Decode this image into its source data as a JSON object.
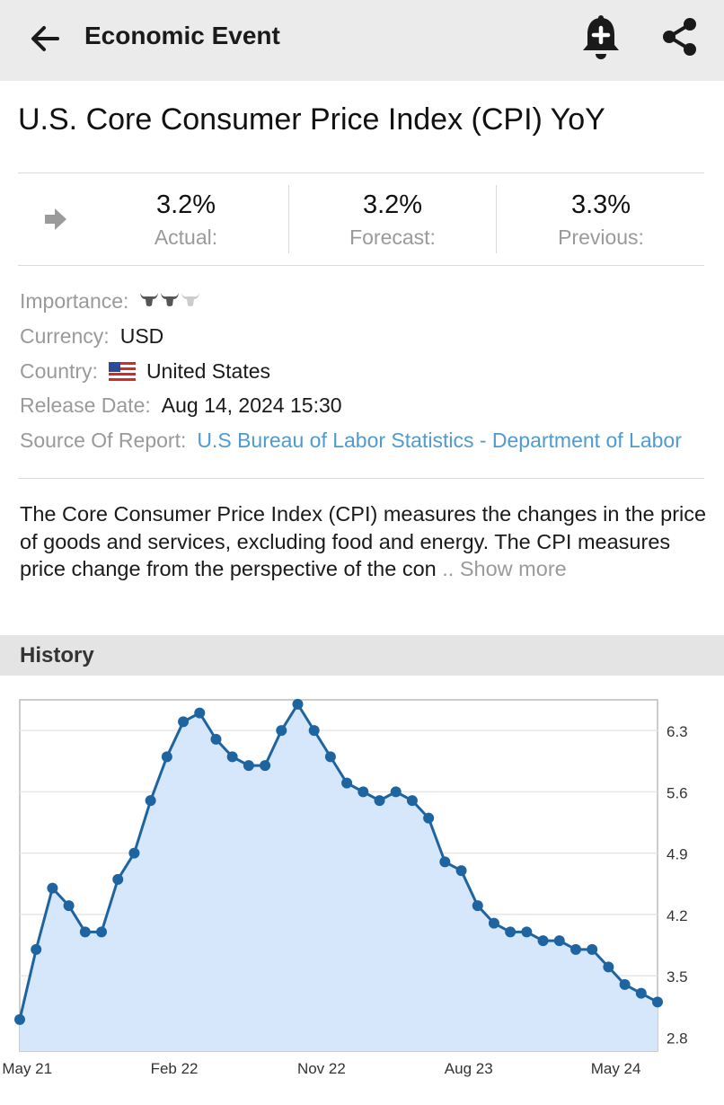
{
  "header": {
    "title": "Economic Event",
    "icons": {
      "back": "arrow-left-icon",
      "alert": "bell-plus-icon",
      "share": "share-icon"
    }
  },
  "event": {
    "title": "U.S. Core Consumer Price Index (CPI) YoY"
  },
  "stats": {
    "trend_icon": "arrow-right-icon",
    "actual": {
      "value": "3.2%",
      "label": "Actual:"
    },
    "forecast": {
      "value": "3.2%",
      "label": "Forecast:"
    },
    "previous": {
      "value": "3.3%",
      "label": "Previous:"
    }
  },
  "details": {
    "importance_label": "Importance:",
    "importance_level": 2,
    "importance_max": 3,
    "currency_label": "Currency:",
    "currency": "USD",
    "country_label": "Country:",
    "country": "United States",
    "release_label": "Release Date:",
    "release": "Aug 14, 2024 15:30",
    "source_label": "Source Of Report:",
    "source": "U.S Bureau of Labor Statistics - Department of Labor"
  },
  "description": {
    "text": "The Core Consumer Price Index (CPI) measures the changes in the price of goods and services, excluding food and energy. The CPI measures price change from the perspective of the con",
    "more": " .. Show more"
  },
  "history": {
    "label": "History"
  },
  "colors": {
    "link": "#4f9bd0",
    "line": "#1e64a0",
    "fill": "#d6e7fb",
    "header_bg": "#ebebeb"
  },
  "chart_data": {
    "type": "area",
    "x_ticks": [
      "May 21",
      "Feb 22",
      "Nov 22",
      "Aug 23",
      "May 24"
    ],
    "x_tick_index": [
      1,
      10,
      19,
      28,
      37
    ],
    "y_ticks": [
      "6.3",
      "5.6",
      "4.9",
      "4.2",
      "3.5",
      "2.8"
    ],
    "ylim": [
      2.8,
      6.3
    ],
    "values": [
      3.0,
      3.8,
      4.5,
      4.3,
      4.0,
      4.0,
      4.6,
      4.9,
      5.5,
      6.0,
      6.4,
      6.5,
      6.2,
      6.0,
      5.9,
      5.9,
      6.3,
      6.6,
      6.3,
      6.0,
      5.7,
      5.6,
      5.5,
      5.6,
      5.5,
      5.3,
      4.8,
      4.7,
      4.3,
      4.1,
      4.0,
      4.0,
      3.9,
      3.9,
      3.8,
      3.8,
      3.6,
      3.4,
      3.3,
      3.2
    ],
    "grid": true,
    "legend": "none"
  }
}
